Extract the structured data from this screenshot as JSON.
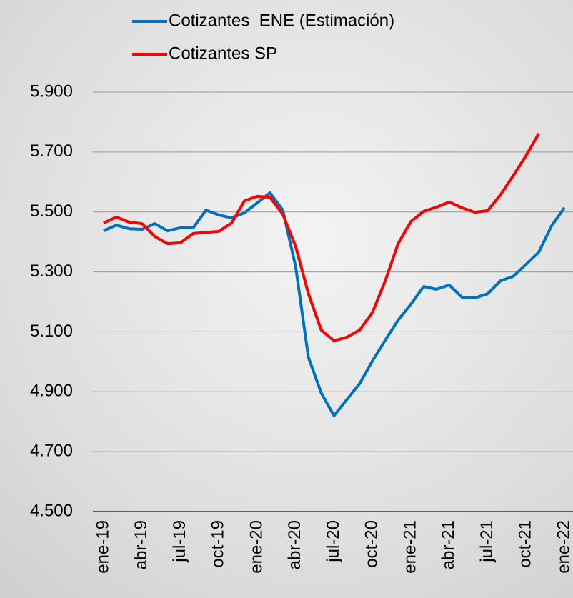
{
  "chart_data": {
    "type": "line",
    "categories": [
      "ene-19",
      null,
      null,
      "abr-19",
      null,
      null,
      "jul-19",
      null,
      null,
      "oct-19",
      null,
      null,
      "ene-20",
      null,
      null,
      "abr-20",
      null,
      null,
      "jul-20",
      null,
      null,
      "oct-20",
      null,
      null,
      "ene-21",
      null,
      null,
      "abr-21",
      null,
      null,
      "jul-21",
      null,
      null,
      "oct-21",
      null,
      null,
      "ene-22"
    ],
    "series": [
      {
        "name": "Cotizantes  ENE (Estimación)",
        "color": "#0070c0",
        "values": [
          5437,
          5456,
          5444,
          5442,
          5461,
          5437,
          5447,
          5447,
          5506,
          5490,
          5480,
          5497,
          5530,
          5564,
          5506,
          5318,
          5015,
          4896,
          4820,
          4874,
          4927,
          5003,
          5072,
          5139,
          5192,
          5251,
          5242,
          5256,
          5215,
          5213,
          5227,
          5270,
          5285,
          5325,
          5366,
          5454,
          5514
        ]
      },
      {
        "name": "Cotizantes SP",
        "color": "#ff0000",
        "values": [
          5463,
          5483,
          5466,
          5461,
          5418,
          5394,
          5397,
          5428,
          5432,
          5435,
          5463,
          5537,
          5552,
          5549,
          5492,
          5385,
          5227,
          5106,
          5070,
          5082,
          5106,
          5165,
          5270,
          5394,
          5468,
          5502,
          5516,
          5533,
          5514,
          5499,
          5504,
          5557,
          5621,
          5688,
          5762,
          null,
          null
        ]
      }
    ],
    "ylim": [
      4500,
      5900
    ],
    "yticks": [
      {
        "value": 4500,
        "label": "4.500"
      },
      {
        "value": 4700,
        "label": "4.700"
      },
      {
        "value": 4900,
        "label": "4.900"
      },
      {
        "value": 5100,
        "label": "5.100"
      },
      {
        "value": 5300,
        "label": "5.300"
      },
      {
        "value": 5500,
        "label": "5.500"
      },
      {
        "value": 5700,
        "label": "5.700"
      },
      {
        "value": 5900,
        "label": "5.900"
      }
    ],
    "grid": true
  }
}
